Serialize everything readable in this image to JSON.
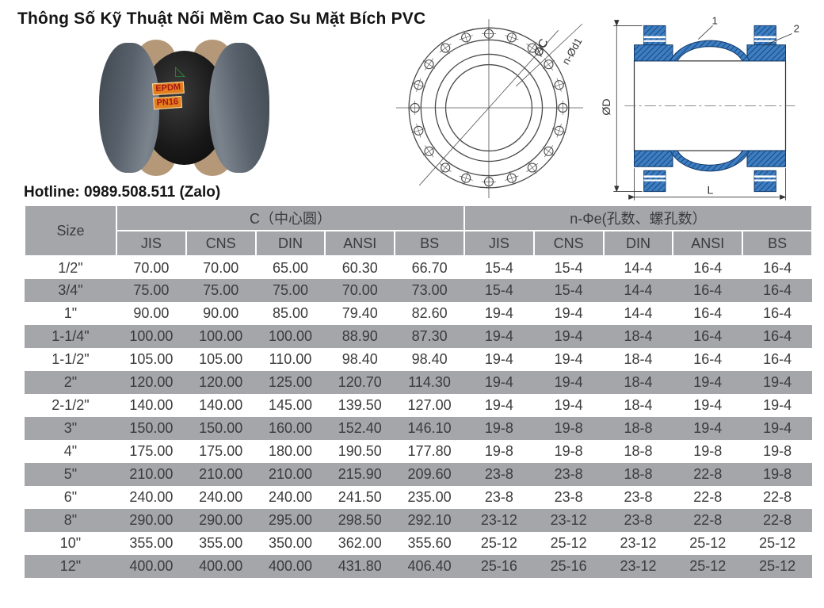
{
  "page": {
    "title": "Thông Số Kỹ Thuật Nối Mềm Cao Su Mặt Bích PVC",
    "hotline": "Hotline: 0989.508.511 (Zalo)"
  },
  "photo": {
    "label_epdm": "EPDM",
    "label_pn16": "PN16"
  },
  "drawings": {
    "flange_front": {
      "dim_bolt_circle": "ØC",
      "dim_bolt_holes": "n-Ød1"
    },
    "cross_section": {
      "dim_diameter": "ØD",
      "dim_length": "L",
      "callout_1": "1",
      "callout_2": "2"
    }
  },
  "colors": {
    "table_gray": "#a5a6aa",
    "drawing_blue": "#3d7dc2",
    "drawing_blue_dark": "#123c6e",
    "label_orange": "#e2801f",
    "label_red": "#a81414",
    "flange_gray": "#5c6570"
  },
  "table": {
    "col_size": "Size",
    "group_c": "C（中心圆）",
    "group_n": "n-Φe(孔数、螺孔数）",
    "standards": [
      "JIS",
      "CNS",
      "DIN",
      "ANSI",
      "BS"
    ],
    "rows": [
      {
        "size": "1/2\"",
        "c": [
          "70.00",
          "70.00",
          "65.00",
          "60.30",
          "66.70"
        ],
        "n": [
          "15-4",
          "15-4",
          "14-4",
          "16-4",
          "16-4"
        ]
      },
      {
        "size": "3/4\"",
        "c": [
          "75.00",
          "75.00",
          "75.00",
          "70.00",
          "73.00"
        ],
        "n": [
          "15-4",
          "15-4",
          "14-4",
          "16-4",
          "16-4"
        ]
      },
      {
        "size": "1\"",
        "c": [
          "90.00",
          "90.00",
          "85.00",
          "79.40",
          "82.60"
        ],
        "n": [
          "19-4",
          "19-4",
          "14-4",
          "16-4",
          "16-4"
        ]
      },
      {
        "size": "1-1/4\"",
        "c": [
          "100.00",
          "100.00",
          "100.00",
          "88.90",
          "87.30"
        ],
        "n": [
          "19-4",
          "19-4",
          "18-4",
          "16-4",
          "16-4"
        ]
      },
      {
        "size": "1-1/2\"",
        "c": [
          "105.00",
          "105.00",
          "110.00",
          "98.40",
          "98.40"
        ],
        "n": [
          "19-4",
          "19-4",
          "18-4",
          "16-4",
          "16-4"
        ]
      },
      {
        "size": "2\"",
        "c": [
          "120.00",
          "120.00",
          "125.00",
          "120.70",
          "114.30"
        ],
        "n": [
          "19-4",
          "19-4",
          "18-4",
          "19-4",
          "19-4"
        ]
      },
      {
        "size": "2-1/2\"",
        "c": [
          "140.00",
          "140.00",
          "145.00",
          "139.50",
          "127.00"
        ],
        "n": [
          "19-4",
          "19-4",
          "18-4",
          "19-4",
          "19-4"
        ]
      },
      {
        "size": "3\"",
        "c": [
          "150.00",
          "150.00",
          "160.00",
          "152.40",
          "146.10"
        ],
        "n": [
          "19-8",
          "19-8",
          "18-8",
          "19-4",
          "19-4"
        ]
      },
      {
        "size": "4\"",
        "c": [
          "175.00",
          "175.00",
          "180.00",
          "190.50",
          "177.80"
        ],
        "n": [
          "19-8",
          "19-8",
          "18-8",
          "19-8",
          "19-8"
        ]
      },
      {
        "size": "5\"",
        "c": [
          "210.00",
          "210.00",
          "210.00",
          "215.90",
          "209.60"
        ],
        "n": [
          "23-8",
          "23-8",
          "18-8",
          "22-8",
          "19-8"
        ]
      },
      {
        "size": "6\"",
        "c": [
          "240.00",
          "240.00",
          "240.00",
          "241.50",
          "235.00"
        ],
        "n": [
          "23-8",
          "23-8",
          "23-8",
          "22-8",
          "22-8"
        ]
      },
      {
        "size": "8\"",
        "c": [
          "290.00",
          "290.00",
          "295.00",
          "298.50",
          "292.10"
        ],
        "n": [
          "23-12",
          "23-12",
          "23-8",
          "22-8",
          "22-8"
        ]
      },
      {
        "size": "10\"",
        "c": [
          "355.00",
          "355.00",
          "350.00",
          "362.00",
          "355.60"
        ],
        "n": [
          "25-12",
          "25-12",
          "23-12",
          "25-12",
          "25-12"
        ]
      },
      {
        "size": "12\"",
        "c": [
          "400.00",
          "400.00",
          "400.00",
          "431.80",
          "406.40"
        ],
        "n": [
          "25-16",
          "25-16",
          "23-12",
          "25-12",
          "25-12"
        ]
      }
    ]
  }
}
